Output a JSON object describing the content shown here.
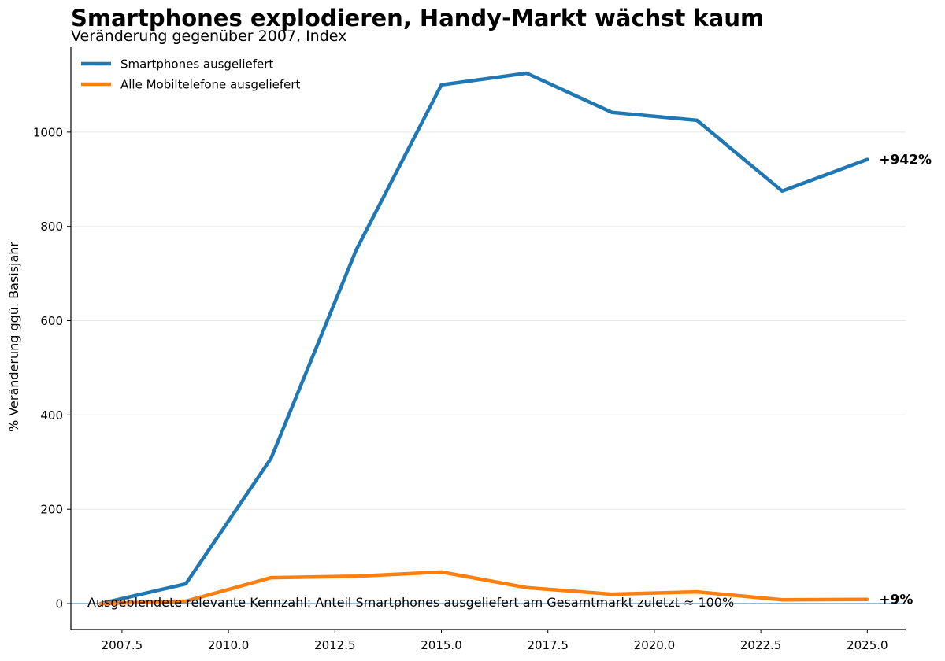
{
  "chart_data": {
    "type": "line",
    "title": "Smartphones explodieren, Handy-Markt wächst kaum",
    "subtitle": "Veränderung gegenüber 2007, Index",
    "xlabel": "",
    "ylabel": "% Veränderung ggü. Basisjahr",
    "xlim": [
      2006.3,
      2025.9
    ],
    "ylim": [
      -55,
      1180
    ],
    "x_ticks": [
      2007.5,
      2010.0,
      2012.5,
      2015.0,
      2017.5,
      2020.0,
      2022.5,
      2025.0
    ],
    "x_tick_labels": [
      "2007.5",
      "2010.0",
      "2012.5",
      "2015.0",
      "2017.5",
      "2020.0",
      "2022.5",
      "2025.0"
    ],
    "y_ticks": [
      0,
      200,
      400,
      600,
      800,
      1000
    ],
    "y_tick_labels": [
      "0",
      "200",
      "400",
      "600",
      "800",
      "1000"
    ],
    "grid": "horizontal",
    "legend_position": "top-left",
    "series": [
      {
        "name": "Smartphones ausgeliefert",
        "color": "#1f77b4",
        "x": [
          2007,
          2009,
          2011,
          2013,
          2015,
          2017,
          2019,
          2021,
          2023,
          2025
        ],
        "y": [
          0,
          42,
          308,
          750,
          1100,
          1125,
          1042,
          1025,
          875,
          942
        ],
        "end_label": "+942%"
      },
      {
        "name": "Alle Mobiltelefone ausgeliefert",
        "color": "#ff7f0e",
        "x": [
          2007,
          2009,
          2011,
          2013,
          2015,
          2017,
          2019,
          2021,
          2023,
          2025
        ],
        "y": [
          0,
          5,
          55,
          58,
          67,
          34,
          20,
          25,
          8,
          9
        ],
        "end_label": "+9%"
      }
    ],
    "reference_line": {
      "y": 0,
      "color": "#1f77b4"
    },
    "annotation": "Ausgeblendete relevante Kennzahl: Anteil Smartphones ausgeliefert am Gesamtmarkt zuletzt ≈ 100%"
  }
}
